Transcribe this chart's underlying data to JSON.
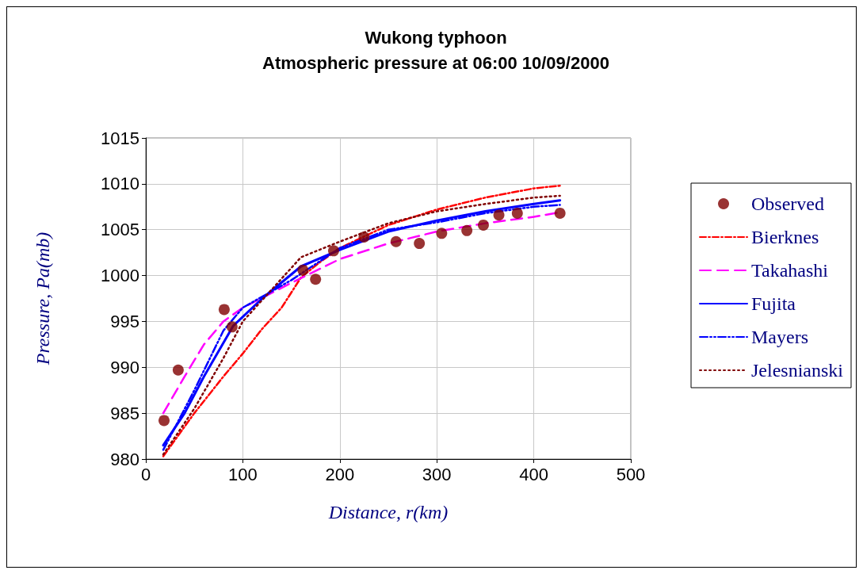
{
  "chart_data": {
    "type": "line",
    "title": "Wukong typhoon",
    "subtitle": "Atmospheric pressure at 06:00 10/09/2000",
    "xlabel": "Distance, r(km)",
    "ylabel": "Pressure, Pa(mb)",
    "xlim": [
      0,
      500
    ],
    "xticks": [
      0,
      100,
      200,
      300,
      400,
      500
    ],
    "ylim": [
      980,
      1015
    ],
    "yticks": [
      980,
      985,
      990,
      995,
      {
        "value": 1000,
        "label": "1000"
      },
      {
        "value": 1005,
        "label": "1005"
      },
      {
        "value": 1010,
        "label": "1010"
      },
      {
        "value": 1015,
        "label": "1015"
      }
    ],
    "grid": true,
    "legend": "right",
    "series": [
      {
        "name": "Observed",
        "type": "scatter",
        "marker": "circle",
        "color": "#800000",
        "x": [
          18.8,
          33.4,
          80.8,
          88.9,
          162,
          175,
          193.6,
          225,
          258,
          282,
          305,
          331,
          348,
          364,
          383,
          427
        ],
        "values": [
          984.2,
          989.7,
          996.3,
          994.4,
          1000.6,
          999.6,
          1002.7,
          1004.2,
          1003.7,
          1003.5,
          1004.6,
          1004.9,
          1005.5,
          1006.6,
          1006.8,
          1006.8
        ]
      },
      {
        "name": "Bierknes",
        "line_style": "dashed",
        "color": "#ff0000",
        "x": [
          18,
          50,
          80,
          100,
          120,
          140,
          160,
          180,
          200,
          250,
          300,
          350,
          400,
          427
        ],
        "values": [
          980.3,
          985,
          989,
          991.5,
          994.2,
          996.5,
          999.8,
          1001.5,
          1003,
          1005.5,
          1007.2,
          1008.5,
          1009.5,
          1009.8
        ]
      },
      {
        "name": "Takahashi",
        "line_style": "dashed",
        "color": "#ff00ff",
        "x": [
          18,
          40,
          60,
          80,
          100,
          150,
          200,
          250,
          300,
          350,
          400,
          427
        ],
        "values": [
          985,
          989,
          992.5,
          995,
          996.5,
          999.2,
          1001.8,
          1003.5,
          1004.8,
          1005.7,
          1006.4,
          1006.9
        ]
      },
      {
        "name": "Fujita",
        "line_style": "solid",
        "color": "#0000ff",
        "x": [
          18,
          40,
          60,
          90,
          120,
          160,
          200,
          250,
          300,
          350,
          400,
          427
        ],
        "values": [
          981.5,
          985,
          989,
          994.5,
          997.5,
          1001,
          1002.8,
          1004.8,
          1006,
          1007,
          1007.8,
          1008.2
        ]
      },
      {
        "name": "Mayers",
        "line_style": "dashed",
        "color": "#0000ff",
        "x": [
          18,
          50,
          80,
          100,
          150,
          200,
          250,
          300,
          350,
          400,
          427
        ],
        "values": [
          981,
          987.5,
          994,
          996.5,
          999.5,
          1003,
          1005,
          1005.8,
          1006.8,
          1007.5,
          1007.7
        ]
      },
      {
        "name": "Jelesnianski",
        "line_style": "dotted",
        "color": "#800000",
        "x": [
          18,
          50,
          80,
          100,
          130,
          160,
          200,
          250,
          300,
          350,
          400,
          427
        ],
        "values": [
          980.5,
          985.5,
          991,
          995,
          998.5,
          1002,
          1003.7,
          1005.7,
          1007,
          1007.8,
          1008.5,
          1008.7
        ]
      }
    ]
  }
}
